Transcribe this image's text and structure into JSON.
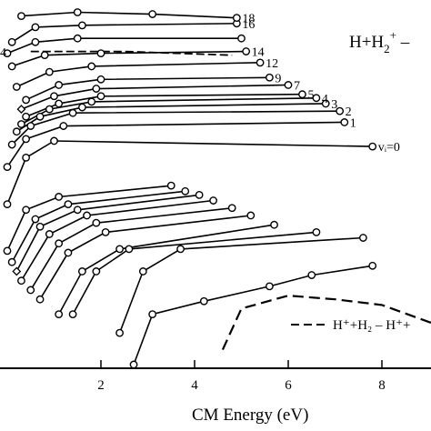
{
  "chart_data": {
    "type": "line",
    "title": "",
    "xlabel": "CM Energy (eV)",
    "ylabel": "",
    "xlim": [
      0,
      9
    ],
    "ylim": [
      0,
      18
    ],
    "xticks": [
      {
        "value": 2,
        "label": "2"
      },
      {
        "value": 4,
        "label": "4"
      },
      {
        "value": 6,
        "label": "6"
      },
      {
        "value": 8,
        "label": "8"
      }
    ],
    "reaction_label": {
      "prefix": "H+H",
      "sub": "2",
      "sup": "+",
      "suffix": " –"
    },
    "legend": {
      "position": "bottom-right",
      "entries": [
        {
          "text": "H⁺+H₂ –  H⁺+",
          "style": "dashed"
        }
      ]
    },
    "dashed_curve": [
      {
        "x": 4.6,
        "y": 0.9
      },
      {
        "x": 5.0,
        "y": 3.1
      },
      {
        "x": 6.0,
        "y": 3.8
      },
      {
        "x": 7.0,
        "y": 3.6
      },
      {
        "x": 8.0,
        "y": 3.3
      },
      {
        "x": 9.1,
        "y": 2.3
      }
    ],
    "series": [
      {
        "label": "",
        "marker": "circle",
        "points": [
          {
            "x": 2.7,
            "y": 0.1
          },
          {
            "x": 3.1,
            "y": 2.8
          },
          {
            "x": 4.2,
            "y": 3.5
          },
          {
            "x": 5.6,
            "y": 4.3
          },
          {
            "x": 6.5,
            "y": 4.9
          },
          {
            "x": 7.8,
            "y": 5.4
          }
        ]
      },
      {
        "label": "",
        "marker": "circle",
        "points": [
          {
            "x": 2.4,
            "y": 1.8
          },
          {
            "x": 2.9,
            "y": 5.1
          },
          {
            "x": 3.7,
            "y": 6.3
          },
          {
            "x": 7.6,
            "y": 6.9
          }
        ]
      },
      {
        "label": "",
        "marker": "circle",
        "points": [
          {
            "x": 1.4,
            "y": 2.8
          },
          {
            "x": 1.9,
            "y": 5.1
          },
          {
            "x": 2.6,
            "y": 6.3
          },
          {
            "x": 6.6,
            "y": 7.2
          }
        ]
      },
      {
        "label": "",
        "marker": "circle",
        "points": [
          {
            "x": 1.1,
            "y": 2.8
          },
          {
            "x": 1.6,
            "y": 5.1
          },
          {
            "x": 2.4,
            "y": 6.3
          },
          {
            "x": 5.7,
            "y": 7.6
          }
        ]
      },
      {
        "label": "",
        "marker": "circle",
        "points": [
          {
            "x": 0.7,
            "y": 3.6
          },
          {
            "x": 1.3,
            "y": 6.1
          },
          {
            "x": 2.1,
            "y": 7.2
          },
          {
            "x": 5.2,
            "y": 8.1
          }
        ]
      },
      {
        "label": "",
        "marker": "circle",
        "points": [
          {
            "x": 0.5,
            "y": 4.1
          },
          {
            "x": 1.1,
            "y": 6.6
          },
          {
            "x": 1.9,
            "y": 7.7
          },
          {
            "x": 4.8,
            "y": 8.5
          }
        ]
      },
      {
        "label": "",
        "marker": "circle",
        "points": [
          {
            "x": 0.3,
            "y": 4.6
          },
          {
            "x": 0.9,
            "y": 7.1
          },
          {
            "x": 1.7,
            "y": 8.1
          },
          {
            "x": 4.4,
            "y": 8.9
          }
        ]
      },
      {
        "label": "",
        "marker": "diamond",
        "points": [
          {
            "x": 0.2,
            "y": 5.1
          },
          {
            "x": 0.7,
            "y": 7.5
          },
          {
            "x": 1.5,
            "y": 8.4
          },
          {
            "x": 4.1,
            "y": 9.2
          }
        ]
      },
      {
        "label": "",
        "marker": "circle",
        "points": [
          {
            "x": 0.1,
            "y": 5.6
          },
          {
            "x": 0.6,
            "y": 7.9
          },
          {
            "x": 1.3,
            "y": 8.7
          },
          {
            "x": 3.8,
            "y": 9.4
          }
        ]
      },
      {
        "label": "",
        "marker": "circle",
        "points": [
          {
            "x": 0.0,
            "y": 6.2
          },
          {
            "x": 0.4,
            "y": 8.4
          },
          {
            "x": 1.1,
            "y": 9.1
          },
          {
            "x": 3.5,
            "y": 9.7
          }
        ]
      },
      {
        "label": "vᵢ=0",
        "marker": "circle",
        "points": [
          {
            "x": 0.0,
            "y": 8.7
          },
          {
            "x": 0.4,
            "y": 11.2
          },
          {
            "x": 1.0,
            "y": 12.1
          },
          {
            "x": 7.8,
            "y": 11.8
          }
        ]
      },
      {
        "label": "1",
        "marker": "circle",
        "points": [
          {
            "x": 0.0,
            "y": 10.7
          },
          {
            "x": 0.4,
            "y": 12.2
          },
          {
            "x": 1.2,
            "y": 12.9
          },
          {
            "x": 7.2,
            "y": 13.1
          }
        ]
      },
      {
        "label": "2",
        "marker": "circle",
        "points": [
          {
            "x": 0.1,
            "y": 11.9
          },
          {
            "x": 0.5,
            "y": 12.9
          },
          {
            "x": 1.4,
            "y": 13.6
          },
          {
            "x": 7.1,
            "y": 13.7
          }
        ]
      },
      {
        "label": "3",
        "marker": "circle",
        "points": [
          {
            "x": 0.2,
            "y": 12.6
          },
          {
            "x": 0.7,
            "y": 13.4
          },
          {
            "x": 1.6,
            "y": 13.9
          },
          {
            "x": 6.8,
            "y": 14.1
          }
        ]
      },
      {
        "label": "4",
        "marker": "circle",
        "points": [
          {
            "x": 0.3,
            "y": 13.0
          },
          {
            "x": 0.9,
            "y": 13.8
          },
          {
            "x": 1.8,
            "y": 14.2
          },
          {
            "x": 6.6,
            "y": 14.4
          }
        ]
      },
      {
        "label": "5",
        "marker": "circle",
        "points": [
          {
            "x": 0.4,
            "y": 13.4
          },
          {
            "x": 1.1,
            "y": 14.1
          },
          {
            "x": 2.0,
            "y": 14.5
          },
          {
            "x": 6.3,
            "y": 14.6
          }
        ]
      },
      {
        "label": "7",
        "marker": "diamond",
        "points": [
          {
            "x": 0.3,
            "y": 13.8
          },
          {
            "x": 1.0,
            "y": 14.5
          },
          {
            "x": 1.9,
            "y": 14.9
          },
          {
            "x": 6.0,
            "y": 15.1
          }
        ]
      },
      {
        "label": "9",
        "marker": "circle",
        "points": [
          {
            "x": 0.4,
            "y": 14.3
          },
          {
            "x": 1.1,
            "y": 15.1
          },
          {
            "x": 2.0,
            "y": 15.4
          },
          {
            "x": 5.6,
            "y": 15.5
          }
        ]
      },
      {
        "label": "12",
        "marker": "circle",
        "points": [
          {
            "x": 0.2,
            "y": 15.0
          },
          {
            "x": 0.9,
            "y": 15.8
          },
          {
            "x": 1.8,
            "y": 16.1
          },
          {
            "x": 5.4,
            "y": 16.3
          }
        ]
      },
      {
        "label": "14",
        "marker": "circle",
        "points": [
          {
            "x": 0.1,
            "y": 16.1
          },
          {
            "x": 0.8,
            "y": 16.7
          },
          {
            "x": 2.0,
            "y": 16.8
          },
          {
            "x": 5.1,
            "y": 16.9
          }
        ]
      },
      {
        "label": "",
        "marker": "circle",
        "points": [
          {
            "x": 0.0,
            "y": 16.8
          },
          {
            "x": 0.6,
            "y": 17.4
          },
          {
            "x": 1.5,
            "y": 17.6
          },
          {
            "x": 5.0,
            "y": 17.6
          }
        ]
      },
      {
        "label": "16",
        "marker": "circle",
        "points": [
          {
            "x": 0.1,
            "y": 17.4
          },
          {
            "x": 0.6,
            "y": 18.2
          },
          {
            "x": 1.6,
            "y": 18.3
          },
          {
            "x": 4.9,
            "y": 18.4
          }
        ]
      },
      {
        "label": "18",
        "marker": "circle",
        "points": [
          {
            "x": 0.3,
            "y": 18.8
          },
          {
            "x": 1.5,
            "y": 19.0
          },
          {
            "x": 3.1,
            "y": 18.9
          },
          {
            "x": 4.9,
            "y": 18.7
          }
        ]
      }
    ],
    "dashed_reference_line": [
      {
        "x": 0.5,
        "y": 16.9
      },
      {
        "x": 2.5,
        "y": 16.9
      },
      {
        "x": 4.8,
        "y": 16.7
      }
    ],
    "edge_label": "4"
  }
}
